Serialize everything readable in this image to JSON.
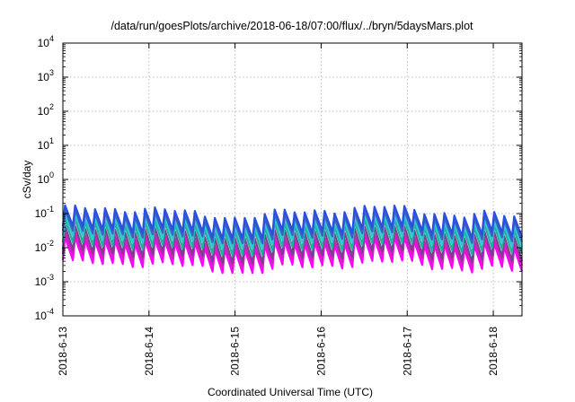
{
  "chart_data": {
    "type": "line",
    "title": "/data/run/goesPlots/archive/2018-06-18/07:00/flux/../bryn/5daysMars.plot",
    "xlabel": "Coordinated Universal Time (UTC)",
    "ylabel": "cSv/day",
    "x_tick_labels": [
      "2018-6-13",
      "2018-6-14",
      "2018-6-15",
      "2018-6-16",
      "2018-6-17",
      "2018-6-18"
    ],
    "y_tick_labels": [
      {
        "base": "10",
        "exp": "4"
      },
      {
        "base": "10",
        "exp": "3"
      },
      {
        "base": "10",
        "exp": "2"
      },
      {
        "base": "10",
        "exp": "1"
      },
      {
        "base": "10",
        "exp": "0"
      },
      {
        "base": "10",
        "exp": "-1"
      },
      {
        "base": "10",
        "exp": "-2"
      },
      {
        "base": "10",
        "exp": "-3"
      },
      {
        "base": "10",
        "exp": "-4"
      }
    ],
    "y_scale": "log",
    "ylim": [
      0.0001,
      10000
    ],
    "xlim": [
      "2018-06-13T00:00",
      "2018-06-18T08:00"
    ],
    "grid": true,
    "legend": "none",
    "pattern": {
      "description": "sawtooth, about 46 cycles over the plotted span",
      "cycles": 46,
      "envelope_max": [
        0.055,
        0.15
      ],
      "envelope_min": [
        0.003,
        0.008
      ]
    },
    "series": [
      {
        "color": "#ff00ff",
        "peak": 0.012,
        "trough": 0.003
      },
      {
        "color": "#d020c0",
        "peak": 0.016,
        "trough": 0.0045
      },
      {
        "color": "#7a3f8f",
        "peak": 0.025,
        "trough": 0.006
      },
      {
        "color": "#20b0a0",
        "peak": 0.04,
        "trough": 0.01
      },
      {
        "color": "#30c8d8",
        "peak": 0.055,
        "trough": 0.016
      },
      {
        "color": "#4060c0",
        "peak": 0.075,
        "trough": 0.022
      },
      {
        "color": "#2a50e0",
        "peak": 0.1,
        "trough": 0.03
      }
    ]
  }
}
